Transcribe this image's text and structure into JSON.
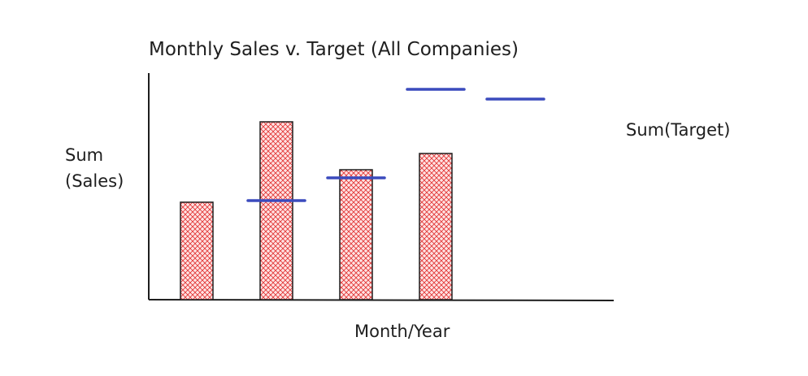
{
  "chart_data": {
    "type": "bar",
    "title": "Monthly Sales v. Target (All Companies)",
    "x_label": "Month/Year",
    "y_label": "Sum (Sales)",
    "categories": [
      null,
      null,
      null,
      null,
      null
    ],
    "ylim": [
      0,
      280
    ],
    "series": [
      {
        "type": "bar",
        "color": "#e03131",
        "values": [
          120,
          219,
          160,
          180,
          null
        ]
      },
      {
        "type": "target",
        "name": "Sum(Target)",
        "color": "#3b4bbd",
        "values": [
          null,
          122,
          150,
          259,
          247
        ]
      }
    ]
  }
}
